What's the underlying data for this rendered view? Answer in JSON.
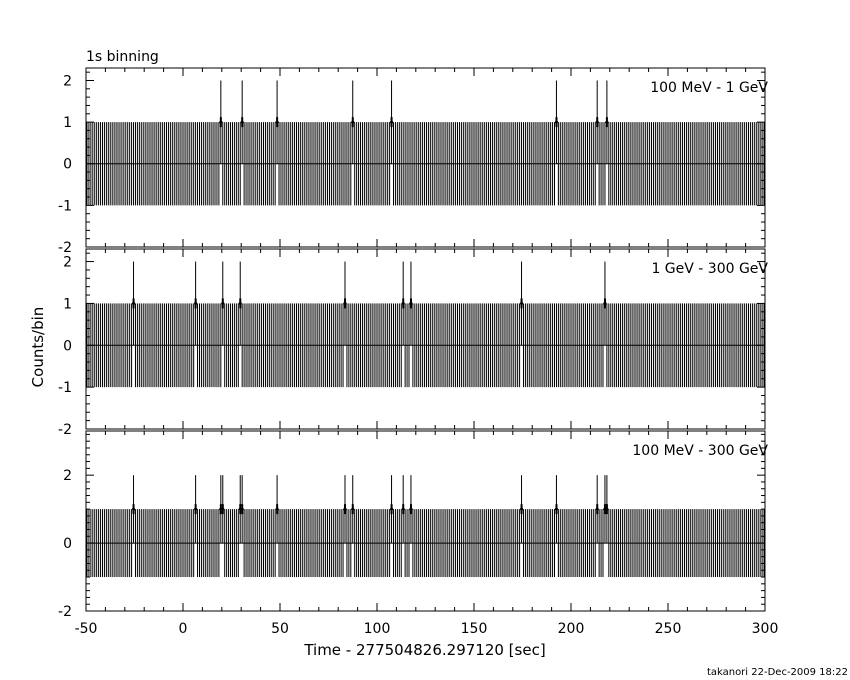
{
  "header": {
    "binning_label": "1s binning"
  },
  "footer": {
    "credit": "takanori 22-Dec-2009 18:22"
  },
  "axis": {
    "xlabel": "Time - 277504826.297120 [sec]",
    "ylabel": "Counts/bin",
    "x_ticks": [
      "-50",
      "0",
      "50",
      "100",
      "150",
      "200",
      "250",
      "300"
    ]
  },
  "chart_data": [
    {
      "type": "bar",
      "title": "100 MeV - 1 GeV",
      "xlim": [
        -50,
        300
      ],
      "ylim": [
        -2,
        2.3
      ],
      "ytick_values": [
        -2,
        -1,
        0,
        1,
        2
      ],
      "ytick_labels": [
        "-2",
        "-1",
        "0",
        "1",
        "2"
      ],
      "bin_width": 1,
      "default_count": 0,
      "error_bar": 1,
      "events": [
        {
          "x": 19.5,
          "count": 1
        },
        {
          "x": 30.5,
          "count": 1
        },
        {
          "x": 48.5,
          "count": 1
        },
        {
          "x": 87.5,
          "count": 1
        },
        {
          "x": 107.5,
          "count": 1
        },
        {
          "x": 192.5,
          "count": 1
        },
        {
          "x": 213.5,
          "count": 1
        },
        {
          "x": 218.5,
          "count": 1
        }
      ]
    },
    {
      "type": "bar",
      "title": "1 GeV - 300 GeV",
      "xlim": [
        -50,
        300
      ],
      "ylim": [
        -2,
        2.3
      ],
      "ytick_values": [
        -2,
        -1,
        0,
        1,
        2
      ],
      "ytick_labels": [
        "-2",
        "-1",
        "0",
        "1",
        "2"
      ],
      "bin_width": 1,
      "default_count": 0,
      "error_bar": 1,
      "events": [
        {
          "x": -25.5,
          "count": 1
        },
        {
          "x": 6.5,
          "count": 1
        },
        {
          "x": 20.5,
          "count": 1
        },
        {
          "x": 29.5,
          "count": 1
        },
        {
          "x": 83.5,
          "count": 1
        },
        {
          "x": 113.5,
          "count": 1
        },
        {
          "x": 117.5,
          "count": 1
        },
        {
          "x": 174.5,
          "count": 1
        },
        {
          "x": 217.5,
          "count": 1
        }
      ]
    },
    {
      "type": "bar",
      "title": "100 MeV - 300 GeV",
      "xlim": [
        -50,
        300
      ],
      "ylim": [
        -2,
        3.3
      ],
      "ytick_values": [
        -2,
        0,
        2
      ],
      "ytick_labels": [
        "-2",
        "0",
        "2"
      ],
      "bin_width": 1,
      "default_count": 0,
      "error_bar": 1,
      "events": [
        {
          "x": -25.5,
          "count": 1
        },
        {
          "x": 6.5,
          "count": 1
        },
        {
          "x": 19.5,
          "count": 1
        },
        {
          "x": 20.5,
          "count": 1
        },
        {
          "x": 29.5,
          "count": 1
        },
        {
          "x": 30.5,
          "count": 1
        },
        {
          "x": 48.5,
          "count": 1
        },
        {
          "x": 83.5,
          "count": 1
        },
        {
          "x": 87.5,
          "count": 1
        },
        {
          "x": 107.5,
          "count": 1
        },
        {
          "x": 113.5,
          "count": 1
        },
        {
          "x": 117.5,
          "count": 1
        },
        {
          "x": 174.5,
          "count": 1
        },
        {
          "x": 192.5,
          "count": 1
        },
        {
          "x": 213.5,
          "count": 1
        },
        {
          "x": 217.5,
          "count": 1
        },
        {
          "x": 218.5,
          "count": 1
        }
      ]
    }
  ]
}
